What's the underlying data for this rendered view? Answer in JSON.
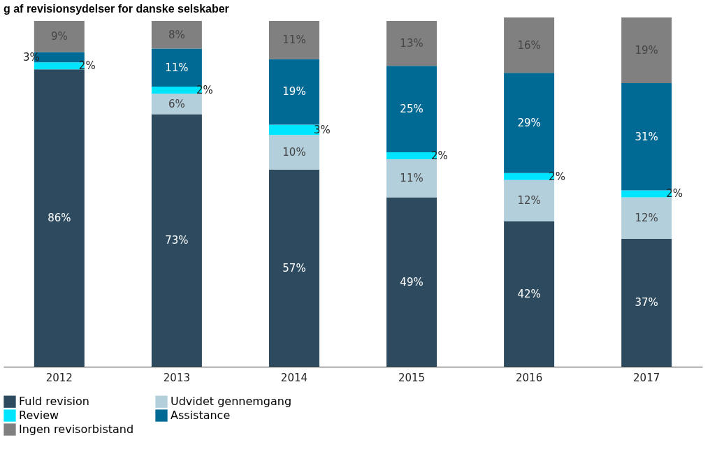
{
  "chart_data": {
    "type": "bar",
    "title": "g af revisionsydelser for danske selskaber",
    "categories": [
      "2012",
      "2013",
      "2014",
      "2015",
      "2016",
      "2017"
    ],
    "stacked": true,
    "legend": "bottom",
    "grid": false,
    "series": [
      {
        "name": "Fuld revision",
        "color": "#2d4a5e",
        "values": [
          86,
          73,
          57,
          49,
          42,
          37
        ],
        "value_labels": [
          "86%",
          "73%",
          "57%",
          "49%",
          "42%",
          "37%"
        ]
      },
      {
        "name": "Udvidet gennemgang",
        "color": "#b3cfdb",
        "values": [
          null,
          6,
          10,
          11,
          12,
          12
        ],
        "value_labels": [
          null,
          "6%",
          "10%",
          "11%",
          "12%",
          "12%"
        ]
      },
      {
        "name": "Review",
        "color": "#00e5ff",
        "values": [
          2,
          2,
          3,
          2,
          2,
          2
        ],
        "value_labels": [
          "2%",
          "2%",
          "3%",
          "2%",
          "2%",
          "2%"
        ]
      },
      {
        "name": "Assistance",
        "color": "#006994",
        "values": [
          3,
          11,
          19,
          25,
          29,
          31
        ],
        "value_labels": [
          "3%",
          "11%",
          "19%",
          "25%",
          "29%",
          "31%"
        ]
      },
      {
        "name": "Ingen revisorbistand",
        "color": "#808080",
        "values": [
          9,
          8,
          11,
          13,
          16,
          19
        ],
        "value_labels": [
          "9%",
          "8%",
          "11%",
          "13%",
          "16%",
          "19%"
        ]
      }
    ]
  }
}
